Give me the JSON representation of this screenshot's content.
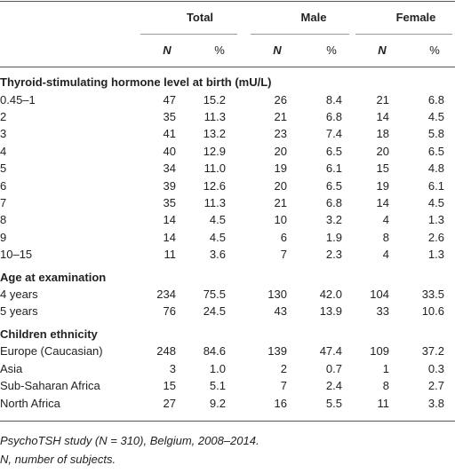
{
  "table": {
    "groups": [
      "Total",
      "Male",
      "Female"
    ],
    "subheaders": [
      "N",
      "%",
      "N",
      "%",
      "N",
      "%"
    ],
    "sections": [
      {
        "title": "Thyroid-stimulating hormone level at birth (mU/L)",
        "rows": [
          [
            "0.45–1",
            "47",
            "15.2",
            "26",
            "8.4",
            "21",
            "6.8"
          ],
          [
            "2",
            "35",
            "11.3",
            "21",
            "6.8",
            "14",
            "4.5"
          ],
          [
            "3",
            "41",
            "13.2",
            "23",
            "7.4",
            "18",
            "5.8"
          ],
          [
            "4",
            "40",
            "12.9",
            "20",
            "6.5",
            "20",
            "6.5"
          ],
          [
            "5",
            "34",
            "11.0",
            "19",
            "6.1",
            "15",
            "4.8"
          ],
          [
            "6",
            "39",
            "12.6",
            "20",
            "6.5",
            "19",
            "6.1"
          ],
          [
            "7",
            "35",
            "11.3",
            "21",
            "6.8",
            "14",
            "4.5"
          ],
          [
            "8",
            "14",
            "4.5",
            "10",
            "3.2",
            "4",
            "1.3"
          ],
          [
            "9",
            "14",
            "4.5",
            "6",
            "1.9",
            "8",
            "2.6"
          ],
          [
            "10–15",
            "11",
            "3.6",
            "7",
            "2.3",
            "4",
            "1.3"
          ]
        ]
      },
      {
        "title": "Age at examination",
        "rows": [
          [
            "4 years",
            "234",
            "75.5",
            "130",
            "42.0",
            "104",
            "33.5"
          ],
          [
            "5 years",
            "76",
            "24.5",
            "43",
            "13.9",
            "33",
            "10.6"
          ]
        ]
      },
      {
        "title": "Children ethnicity",
        "rows": [
          [
            "Europe (Caucasian)",
            "248",
            "84.6",
            "139",
            "47.4",
            "109",
            "37.2"
          ],
          [
            "Asia",
            "3",
            "1.0",
            "2",
            "0.7",
            "1",
            "0.3"
          ],
          [
            "Sub-Saharan Africa",
            "15",
            "5.1",
            "7",
            "2.4",
            "8",
            "2.7"
          ],
          [
            "North Africa",
            "27",
            "9.2",
            "16",
            "5.5",
            "11",
            "3.8"
          ]
        ]
      }
    ]
  },
  "footnotes": [
    "PsychoTSH study (N = 310), Belgium, 2008–2014.",
    "N, number of subjects."
  ]
}
